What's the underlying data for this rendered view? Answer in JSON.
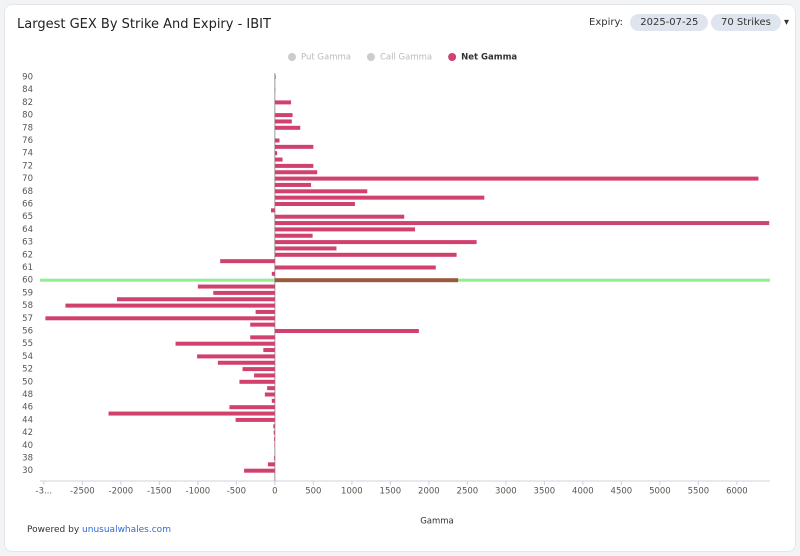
{
  "header": {
    "title": "Largest GEX By Strike And Expiry - IBIT",
    "expiry_label": "Expiry:",
    "expiry": "2025-07-25",
    "strikes": "70 Strikes"
  },
  "footer": {
    "prefix": "Powered by",
    "link": "unusualwhales.com"
  },
  "chart_data": {
    "type": "hbar",
    "legend": [
      {
        "name": "Put Gamma",
        "color": "#cccccc"
      },
      {
        "name": "Call Gamma",
        "color": "#cccccc"
      },
      {
        "name": "Net Gamma",
        "color": "#d0416e"
      }
    ],
    "xlabel": "Gamma",
    "categories": [
      "90",
      null,
      "84",
      null,
      "82",
      null,
      "80",
      null,
      "78",
      null,
      "76",
      null,
      "74",
      null,
      "72",
      null,
      "70",
      null,
      "68",
      null,
      "66",
      null,
      "65",
      null,
      "64",
      null,
      "63",
      null,
      "62",
      null,
      "61",
      null,
      "60",
      null,
      "59",
      null,
      "58",
      null,
      "57",
      null,
      "56",
      null,
      "55",
      null,
      "54",
      null,
      "52",
      null,
      "50",
      null,
      "48",
      null,
      "46",
      null,
      "44",
      null,
      "42",
      null,
      "40",
      null,
      "38",
      null,
      "30"
    ],
    "series": [
      {
        "name": "Net Gamma",
        "color": "#d0416e",
        "values": [
          10,
          0,
          5,
          0,
          210,
          0,
          230,
          220,
          330,
          0,
          60,
          500,
          30,
          100,
          500,
          550,
          6280,
          470,
          1200,
          2720,
          1040,
          -50,
          1680,
          6420,
          1820,
          490,
          2620,
          800,
          2360,
          -710,
          2090,
          -40,
          2380,
          -1000,
          -800,
          -2050,
          -2720,
          -250,
          -2980,
          -320,
          1870,
          -320,
          -1290,
          -150,
          -1010,
          -740,
          -420,
          -270,
          -460,
          -100,
          -130,
          -40,
          -590,
          -2160,
          -510,
          -20,
          -15,
          -10,
          -5,
          0,
          -10,
          -90,
          -400
        ]
      }
    ],
    "highlight_strike": "60",
    "highlight_color": "#9a5a3e",
    "price_line_color": "#90ee90",
    "xlim": [
      -3050,
      6430
    ],
    "xticks": [
      {
        "value": -3000,
        "label": "-3..."
      },
      -2500,
      -2000,
      -1500,
      -1000,
      -500,
      0,
      500,
      1000,
      1500,
      2000,
      2500,
      3000,
      3500,
      4000,
      4500,
      5000,
      5500,
      6000
    ]
  }
}
